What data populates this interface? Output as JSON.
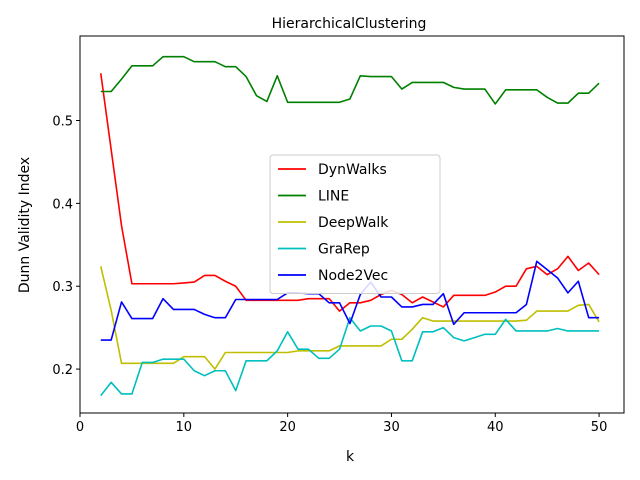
{
  "chart_data": {
    "type": "line",
    "title": "HierarchicalClustering",
    "xlabel": "k",
    "ylabel": "Dunn Validity Index",
    "xlim": [
      0,
      52.4
    ],
    "ylim": [
      0.147,
      0.602
    ],
    "xticks": [
      0,
      10,
      20,
      30,
      40,
      50
    ],
    "yticks": [
      0.2,
      0.3,
      0.4,
      0.5
    ],
    "grid": false,
    "legend_position": "center-right",
    "x": [
      2,
      3,
      4,
      5,
      6,
      7,
      8,
      9,
      10,
      11,
      12,
      13,
      14,
      15,
      16,
      17,
      18,
      19,
      20,
      21,
      22,
      23,
      24,
      25,
      26,
      27,
      28,
      29,
      30,
      31,
      32,
      33,
      34,
      35,
      36,
      37,
      38,
      39,
      40,
      41,
      42,
      43,
      44,
      45,
      46,
      47,
      48,
      49,
      50
    ],
    "series": [
      {
        "name": "DynWalks",
        "color": "#ff0000",
        "values": [
          0.557,
          0.465,
          0.373,
          0.303,
          0.303,
          0.303,
          0.303,
          0.303,
          0.304,
          0.305,
          0.313,
          0.313,
          0.306,
          0.3,
          0.283,
          0.283,
          0.283,
          0.283,
          0.283,
          0.283,
          0.285,
          0.285,
          0.285,
          0.27,
          0.28,
          0.28,
          0.283,
          0.29,
          0.295,
          0.29,
          0.28,
          0.287,
          0.281,
          0.275,
          0.289,
          0.289,
          0.289,
          0.289,
          0.293,
          0.3,
          0.3,
          0.321,
          0.324,
          0.314,
          0.321,
          0.336,
          0.319,
          0.328,
          0.314
        ]
      },
      {
        "name": "LINE",
        "color": "#008000",
        "values": [
          0.535,
          0.535,
          0.55,
          0.566,
          0.566,
          0.566,
          0.577,
          0.577,
          0.577,
          0.571,
          0.571,
          0.571,
          0.565,
          0.565,
          0.553,
          0.53,
          0.523,
          0.554,
          0.522,
          0.522,
          0.522,
          0.522,
          0.522,
          0.522,
          0.526,
          0.554,
          0.553,
          0.553,
          0.553,
          0.538,
          0.546,
          0.546,
          0.546,
          0.546,
          0.54,
          0.538,
          0.538,
          0.538,
          0.52,
          0.537,
          0.537,
          0.537,
          0.537,
          0.528,
          0.521,
          0.521,
          0.533,
          0.533,
          0.545
        ]
      },
      {
        "name": "DeepWalk",
        "color": "#bfbf00",
        "values": [
          0.324,
          0.271,
          0.207,
          0.207,
          0.207,
          0.207,
          0.207,
          0.207,
          0.215,
          0.215,
          0.215,
          0.2,
          0.22,
          0.22,
          0.22,
          0.22,
          0.22,
          0.22,
          0.22,
          0.222,
          0.222,
          0.222,
          0.222,
          0.228,
          0.228,
          0.228,
          0.228,
          0.228,
          0.236,
          0.236,
          0.248,
          0.262,
          0.258,
          0.258,
          0.258,
          0.258,
          0.258,
          0.258,
          0.258,
          0.258,
          0.258,
          0.259,
          0.27,
          0.27,
          0.27,
          0.27,
          0.277,
          0.278,
          0.257
        ]
      },
      {
        "name": "GraRep",
        "color": "#00bfbf",
        "values": [
          0.168,
          0.184,
          0.17,
          0.17,
          0.208,
          0.208,
          0.212,
          0.212,
          0.212,
          0.198,
          0.192,
          0.198,
          0.198,
          0.174,
          0.21,
          0.21,
          0.21,
          0.222,
          0.245,
          0.224,
          0.224,
          0.213,
          0.213,
          0.224,
          0.262,
          0.246,
          0.252,
          0.252,
          0.246,
          0.21,
          0.21,
          0.245,
          0.245,
          0.25,
          0.238,
          0.234,
          0.238,
          0.242,
          0.242,
          0.26,
          0.246,
          0.246,
          0.246,
          0.246,
          0.249,
          0.246,
          0.246,
          0.246,
          0.246
        ]
      },
      {
        "name": "Node2Vec",
        "color": "#0000ff",
        "values": [
          0.235,
          0.235,
          0.281,
          0.261,
          0.261,
          0.261,
          0.285,
          0.272,
          0.272,
          0.272,
          0.266,
          0.262,
          0.262,
          0.284,
          0.284,
          0.284,
          0.284,
          0.284,
          0.292,
          0.292,
          0.291,
          0.291,
          0.28,
          0.28,
          0.255,
          0.29,
          0.305,
          0.287,
          0.287,
          0.275,
          0.275,
          0.278,
          0.278,
          0.291,
          0.254,
          0.268,
          0.268,
          0.268,
          0.268,
          0.268,
          0.268,
          0.278,
          0.33,
          0.32,
          0.31,
          0.292,
          0.306,
          0.262,
          0.262
        ]
      }
    ]
  }
}
